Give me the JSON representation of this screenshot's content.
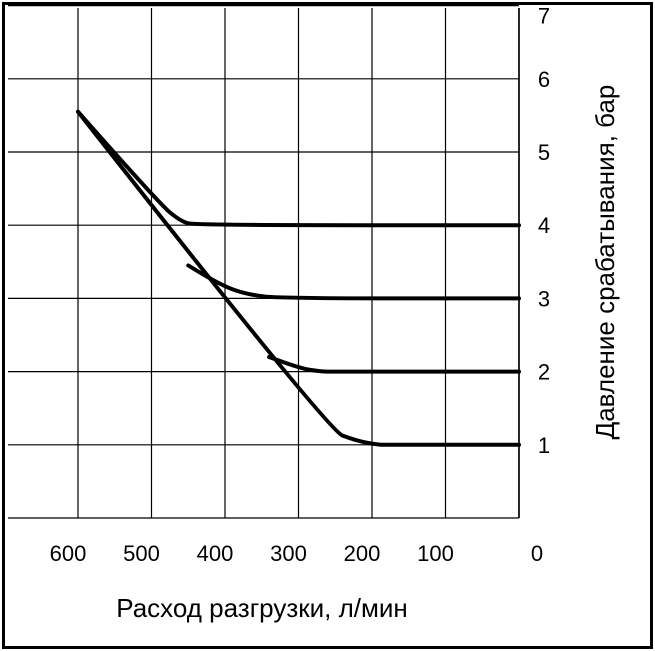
{
  "chart_data": {
    "type": "line",
    "title": "",
    "xlabel": "Расход разгрузки, л/мин",
    "ylabel": "Давление срабатывания, бар",
    "x_reversed": true,
    "xlim": [
      0,
      600
    ],
    "ylim": [
      0,
      7
    ],
    "x_ticks": [
      "600",
      "500",
      "400",
      "300",
      "200",
      "100",
      "0"
    ],
    "y_ticks": [
      "1",
      "2",
      "3",
      "4",
      "5",
      "6",
      "7"
    ],
    "grid": true,
    "series": [
      {
        "x": [
          600,
          490,
          460,
          440,
          0
        ],
        "y": [
          5.55,
          4.3,
          4.05,
          4.0,
          4.0
        ]
      },
      {
        "x": [
          450,
          410,
          370,
          320,
          0
        ],
        "y": [
          3.45,
          3.2,
          3.05,
          3.0,
          3.0
        ]
      },
      {
        "x": [
          340,
          300,
          270,
          250,
          0
        ],
        "y": [
          2.2,
          2.05,
          2.0,
          2.0,
          2.0
        ]
      },
      {
        "x": [
          600,
          260,
          220,
          190,
          180,
          0
        ],
        "y": [
          5.55,
          1.2,
          1.05,
          1.0,
          1.0,
          1.0
        ]
      }
    ],
    "line_color": "#000000"
  }
}
